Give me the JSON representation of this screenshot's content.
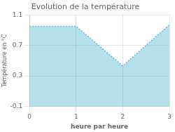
{
  "chart_data": {
    "type": "area",
    "title": "Evolution de la température",
    "xlabel": "heure par heure",
    "ylabel": "Température en °C",
    "x": [
      0,
      1,
      2,
      3
    ],
    "values": [
      0.95,
      0.95,
      0.43,
      0.97
    ],
    "color": "#5bbcd6",
    "line_style": "dotted",
    "xlim": [
      0,
      3
    ],
    "xticks": [
      0,
      1,
      2,
      3
    ],
    "ylim": [
      -0.1,
      1.1
    ],
    "yticks": [
      -0.1,
      0.3,
      0.7,
      1.1
    ],
    "grid": true
  }
}
